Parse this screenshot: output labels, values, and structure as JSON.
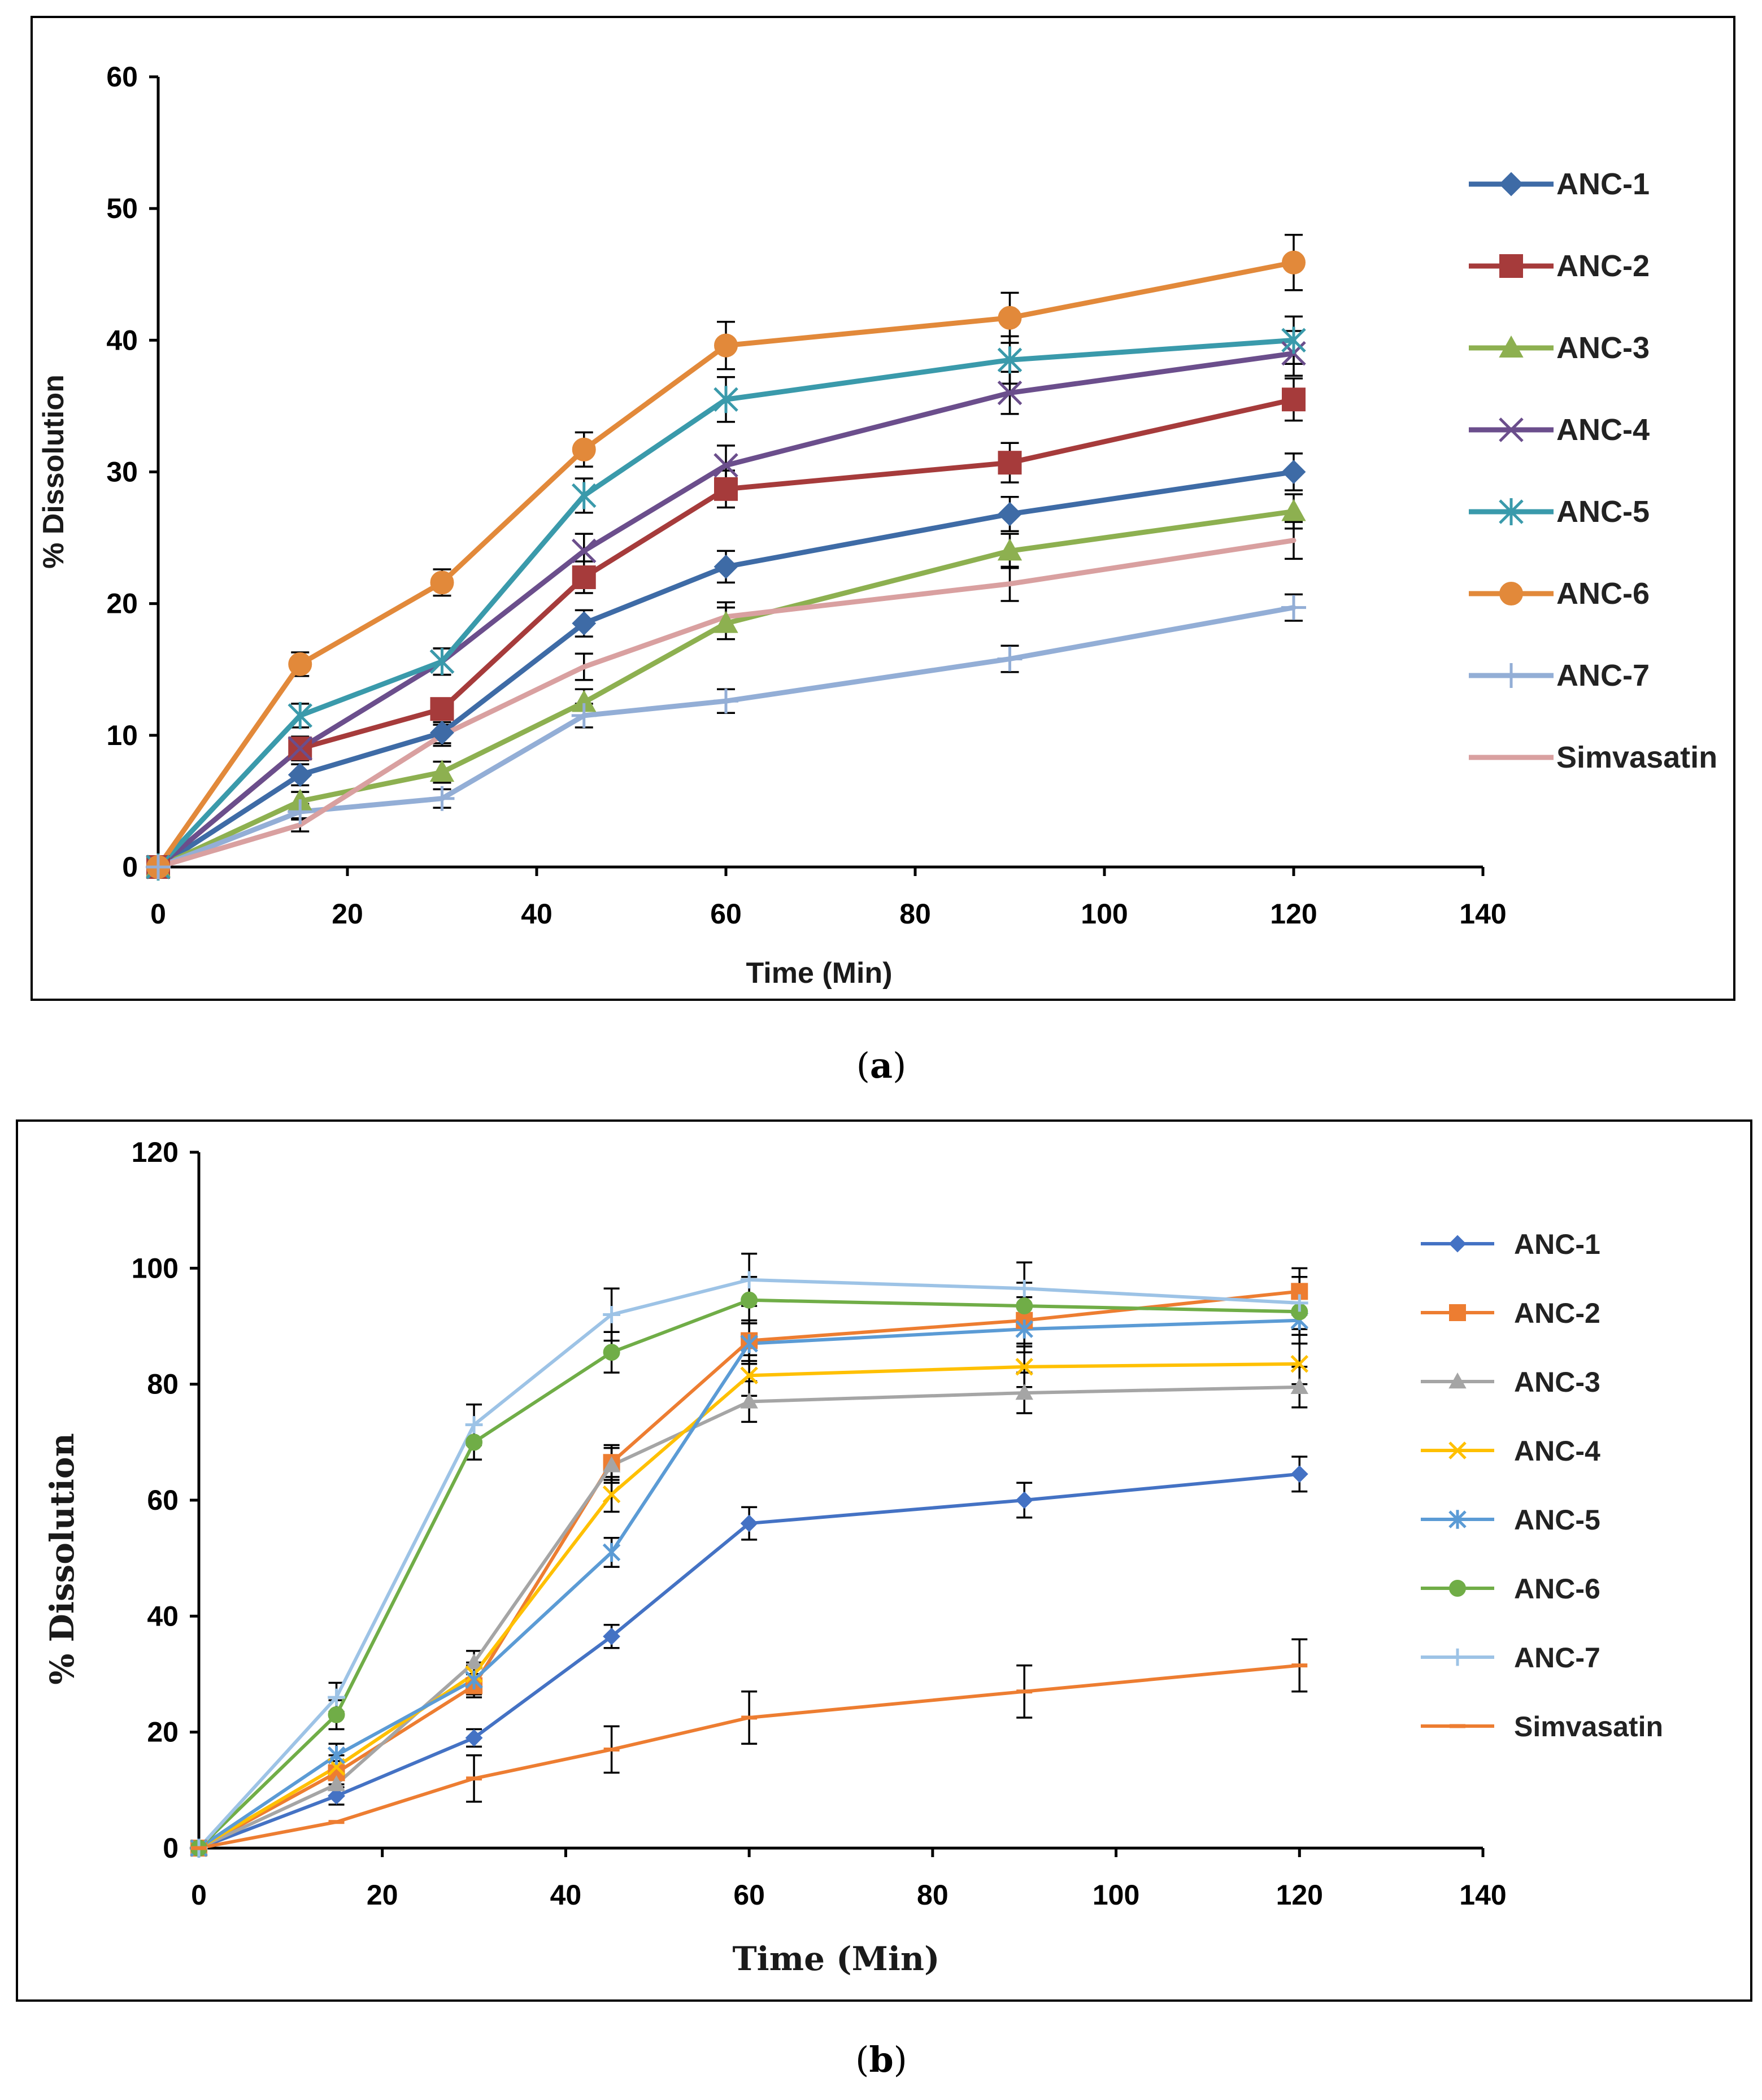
{
  "chart_data": [
    {
      "type": "line",
      "panel": "a",
      "title": "",
      "xlabel": "Time (Min)",
      "ylabel": "% Dissolution",
      "xlim": [
        0,
        140
      ],
      "ylim": [
        0,
        60
      ],
      "xticks": [
        0,
        20,
        40,
        60,
        80,
        100,
        120,
        140
      ],
      "yticks": [
        0,
        10,
        20,
        30,
        40,
        50,
        60
      ],
      "grid": false,
      "legend_position": "right",
      "x": [
        0,
        15,
        30,
        45,
        60,
        90,
        120
      ],
      "series": [
        {
          "name": "ANC-1",
          "color": "#3E6BA6",
          "marker": "diamond",
          "values": [
            0,
            7,
            10.2,
            18.5,
            22.8,
            26.8,
            30
          ],
          "errors": [
            0,
            0.8,
            0.8,
            1,
            1.2,
            1.3,
            1.4
          ]
        },
        {
          "name": "ANC-2",
          "color": "#A63B3B",
          "marker": "square",
          "values": [
            0,
            9,
            12,
            22,
            28.7,
            30.7,
            35.5
          ],
          "errors": [
            0,
            0.8,
            0.8,
            1.2,
            1.4,
            1.5,
            1.6
          ]
        },
        {
          "name": "ANC-3",
          "color": "#8DB050",
          "marker": "triangle",
          "values": [
            0,
            5,
            7.2,
            12.5,
            18.5,
            24,
            27
          ],
          "errors": [
            0,
            0.7,
            0.8,
            1,
            1.2,
            1.3,
            1.3
          ]
        },
        {
          "name": "ANC-4",
          "color": "#6B4E8C",
          "marker": "x",
          "values": [
            0,
            9,
            15.6,
            24,
            30.5,
            36,
            39
          ],
          "errors": [
            0,
            0.9,
            1,
            1.3,
            1.5,
            1.6,
            1.7
          ]
        },
        {
          "name": "ANC-5",
          "color": "#3A9AAB",
          "marker": "star",
          "values": [
            0,
            11.5,
            15.6,
            28.2,
            35.5,
            38.5,
            40
          ],
          "errors": [
            0,
            0.9,
            1,
            1.3,
            1.7,
            1.8,
            1.8
          ]
        },
        {
          "name": "ANC-6",
          "color": "#E2893A",
          "marker": "circle",
          "values": [
            0,
            15.4,
            21.6,
            31.7,
            39.6,
            41.7,
            45.9
          ],
          "errors": [
            0,
            0.9,
            1,
            1.3,
            1.8,
            1.9,
            2.1
          ]
        },
        {
          "name": "ANC-7",
          "color": "#93AED6",
          "marker": "plus",
          "values": [
            0,
            4.2,
            5.2,
            11.5,
            12.6,
            15.8,
            19.7
          ],
          "errors": [
            0,
            0.6,
            0.7,
            0.9,
            0.9,
            1,
            1
          ]
        },
        {
          "name": "Simvasatin",
          "color": "#D9A0A0",
          "marker": "none",
          "values": [
            0,
            3.2,
            10,
            15.2,
            19,
            21.5,
            24.8
          ],
          "errors": [
            0,
            0.5,
            0.8,
            1,
            1.1,
            1.3,
            1.4
          ]
        }
      ],
      "caption": {
        "open": "(",
        "letter": "a",
        "close": ")"
      }
    },
    {
      "type": "line",
      "panel": "b",
      "title": "",
      "xlabel": "Time (Min)",
      "ylabel": "% Dissolution",
      "xlim": [
        0,
        140
      ],
      "ylim": [
        0,
        120
      ],
      "xticks": [
        0,
        20,
        40,
        60,
        80,
        100,
        120,
        140
      ],
      "yticks": [
        0,
        20,
        40,
        60,
        80,
        100,
        120
      ],
      "grid": false,
      "legend_position": "right",
      "x": [
        0,
        15,
        30,
        45,
        60,
        90,
        120
      ],
      "series": [
        {
          "name": "ANC-1",
          "color": "#4472C4",
          "marker": "diamond",
          "values": [
            0,
            9,
            19,
            36.5,
            56,
            60,
            64.5
          ],
          "errors": [
            0,
            1.5,
            1.5,
            2,
            2.8,
            3,
            3
          ]
        },
        {
          "name": "ANC-2",
          "color": "#ED7D31",
          "marker": "square",
          "values": [
            0,
            13,
            28,
            66.5,
            87.5,
            91,
            96
          ],
          "errors": [
            0,
            2,
            2,
            3,
            3.5,
            4,
            4
          ]
        },
        {
          "name": "ANC-3",
          "color": "#A5A5A5",
          "marker": "triangle",
          "values": [
            0,
            11,
            32,
            66,
            77,
            78.5,
            79.5
          ],
          "errors": [
            0,
            2,
            2,
            3,
            3.5,
            3.5,
            3.5
          ]
        },
        {
          "name": "ANC-4",
          "color": "#FFC000",
          "marker": "x",
          "values": [
            0,
            14,
            30,
            61,
            81.5,
            83,
            83.5
          ],
          "errors": [
            0,
            2,
            2,
            3,
            3.5,
            3.5,
            3.5
          ]
        },
        {
          "name": "ANC-5",
          "color": "#5B9BD5",
          "marker": "star",
          "values": [
            0,
            16,
            29,
            51,
            87,
            89.5,
            91
          ],
          "errors": [
            0,
            2,
            2.5,
            2.5,
            3.5,
            4,
            4
          ]
        },
        {
          "name": "ANC-6",
          "color": "#70AD47",
          "marker": "circle",
          "values": [
            0,
            23,
            70,
            85.5,
            94.5,
            93.5,
            92.5
          ],
          "errors": [
            0,
            2.5,
            3,
            3.5,
            4,
            4,
            4
          ]
        },
        {
          "name": "ANC-7",
          "color": "#9DC3E6",
          "marker": "plus",
          "values": [
            0,
            26,
            73,
            92,
            98,
            96.5,
            94
          ],
          "errors": [
            0,
            2.5,
            3.5,
            4.5,
            4.5,
            4.5,
            4.5
          ]
        },
        {
          "name": "Simvasatin",
          "color": "#ED7D31",
          "marker": "dash",
          "values": [
            0,
            4.5,
            12,
            17,
            22.5,
            27,
            31.5
          ],
          "errors": [
            0,
            0,
            4,
            4,
            4.5,
            4.5,
            4.5
          ]
        }
      ],
      "caption": {
        "open": "(",
        "letter": "b",
        "close": ")"
      }
    }
  ]
}
